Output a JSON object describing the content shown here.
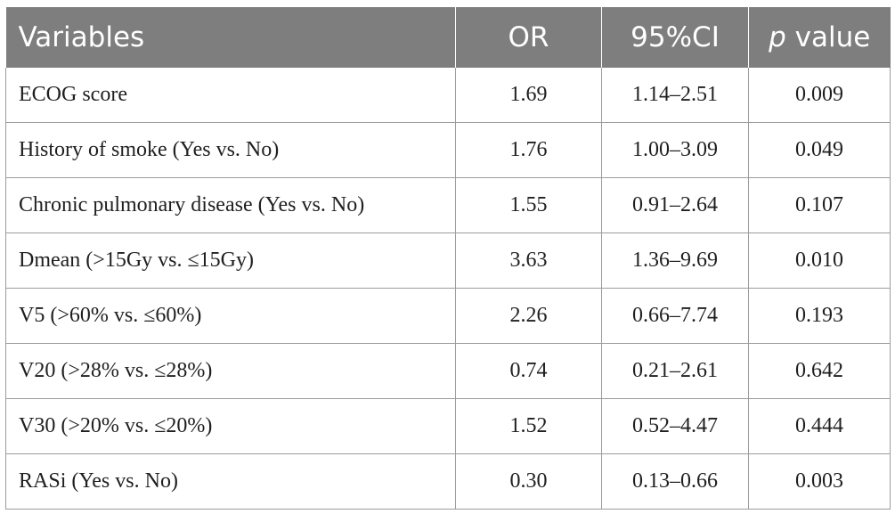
{
  "table": {
    "headers": {
      "variables": "Variables",
      "or": "OR",
      "ci": "95%CI",
      "p_italic": "p",
      "p_rest": " value"
    },
    "rows": [
      {
        "variable": "ECOG score",
        "or": "1.69",
        "ci": "1.14–2.51",
        "p": "0.009"
      },
      {
        "variable": "History of smoke (Yes vs. No)",
        "or": "1.76",
        "ci": "1.00–3.09",
        "p": "0.049"
      },
      {
        "variable": "Chronic pulmonary disease (Yes vs. No)",
        "or": "1.55",
        "ci": "0.91–2.64",
        "p": "0.107"
      },
      {
        "variable": "Dmean (>15Gy vs. ≤15Gy)",
        "or": "3.63",
        "ci": "1.36–9.69",
        "p": "0.010"
      },
      {
        "variable": "V5 (>60% vs. ≤60%)",
        "or": "2.26",
        "ci": "0.66–7.74",
        "p": "0.193"
      },
      {
        "variable": "V20 (>28% vs. ≤28%)",
        "or": "0.74",
        "ci": "0.21–2.61",
        "p": "0.642"
      },
      {
        "variable": "V30 (>20% vs. ≤20%)",
        "or": "1.52",
        "ci": "0.52–4.47",
        "p": "0.444"
      },
      {
        "variable": "RASi (Yes vs. No)",
        "or": "0.30",
        "ci": "0.13–0.66",
        "p": "0.003"
      }
    ]
  }
}
